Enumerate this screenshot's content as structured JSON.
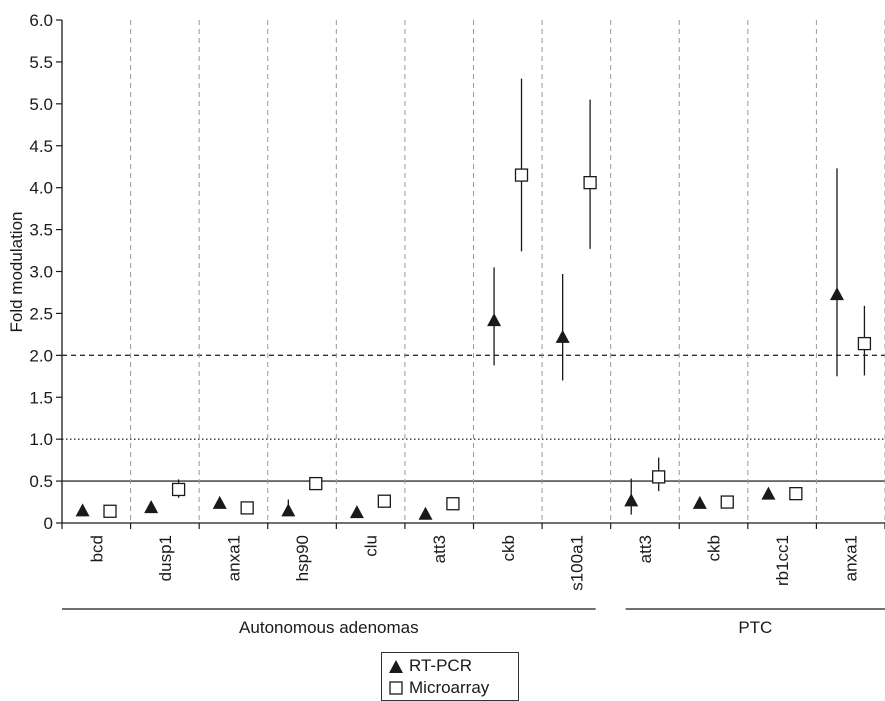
{
  "chart_data": {
    "type": "scatter",
    "ylabel": "Fold modulation",
    "ylim": [
      0,
      6.0
    ],
    "yticks": [
      "0",
      "0.5",
      "1.0",
      "1.5",
      "2.0",
      "2.5",
      "3.0",
      "3.5",
      "4.0",
      "4.5",
      "5.0",
      "5.5",
      "6.0"
    ],
    "categories": [
      "bcd",
      "dusp1",
      "anxa1",
      "hsp90",
      "clu",
      "att3",
      "ckb",
      "s100a1",
      "att3",
      "ckb",
      "rb1cc1",
      "anxa1"
    ],
    "groups": [
      {
        "name": "Autonomous adenomas",
        "from": 0,
        "to": 7
      },
      {
        "name": "PTC",
        "from": 8,
        "to": 11
      }
    ],
    "reference_lines": [
      {
        "y": 0.5,
        "style": "solid"
      },
      {
        "y": 1.0,
        "style": "dotted"
      },
      {
        "y": 2.0,
        "style": "dashed"
      }
    ],
    "grid": "vertical dashed separators",
    "legend_position": "bottom-center",
    "series": [
      {
        "name": "RT-PCR",
        "marker": "filled-triangle",
        "values": [
          0.15,
          0.19,
          0.24,
          0.15,
          0.13,
          0.11,
          2.42,
          2.22,
          0.27,
          0.24,
          0.35,
          2.73
        ],
        "err_low": [
          null,
          0.14,
          null,
          0.1,
          null,
          null,
          1.88,
          1.7,
          0.1,
          null,
          null,
          1.75
        ],
        "err_high": [
          null,
          0.26,
          null,
          0.28,
          null,
          null,
          3.05,
          2.97,
          0.53,
          null,
          null,
          4.23
        ]
      },
      {
        "name": "Microarray",
        "marker": "open-square",
        "values": [
          0.14,
          0.4,
          0.18,
          0.47,
          0.26,
          0.23,
          4.15,
          4.06,
          0.55,
          0.25,
          0.35,
          2.14
        ],
        "err_low": [
          null,
          0.3,
          null,
          null,
          null,
          null,
          3.24,
          3.27,
          0.38,
          null,
          null,
          1.76
        ],
        "err_high": [
          null,
          0.52,
          null,
          null,
          null,
          null,
          5.3,
          5.05,
          0.78,
          null,
          null,
          2.59
        ]
      }
    ]
  },
  "colors": {
    "mark": "#1a1a1a",
    "grid": "#999999",
    "ref": "#333333"
  }
}
